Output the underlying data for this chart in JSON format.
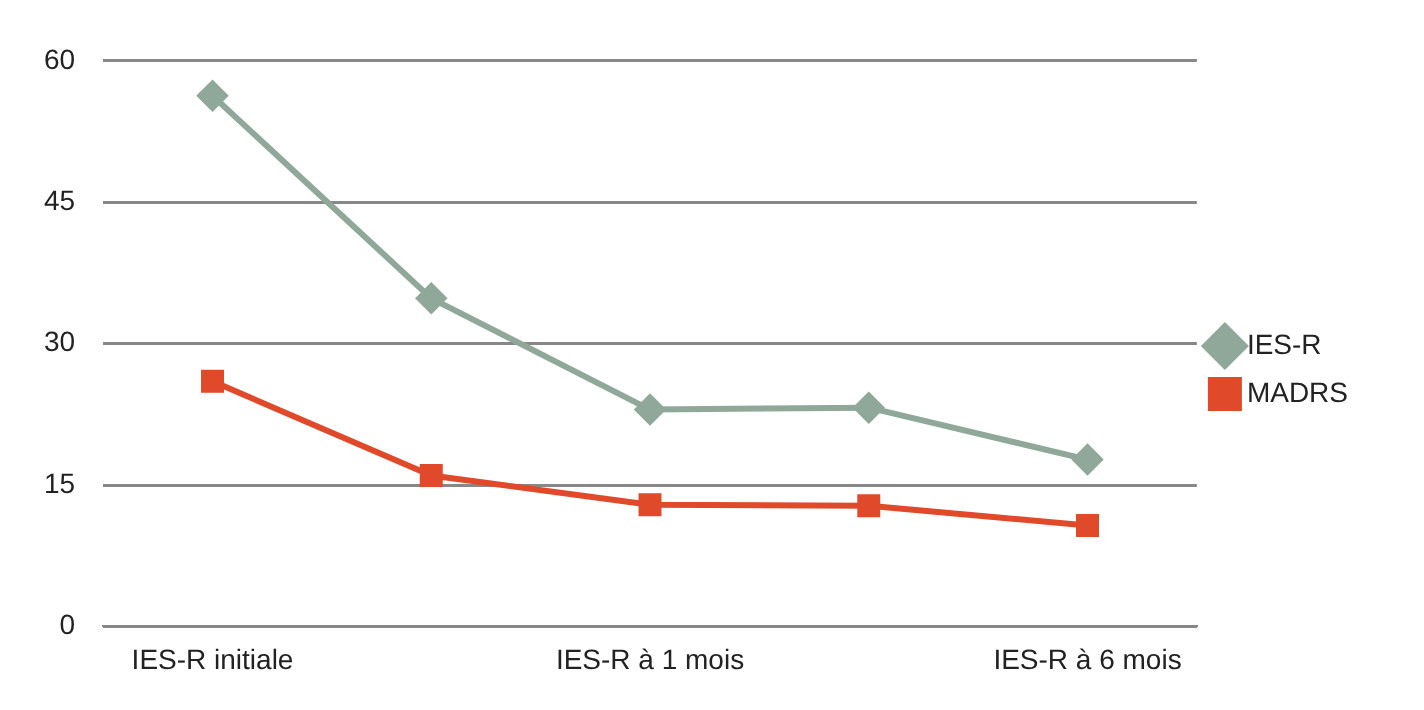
{
  "chart_data": {
    "type": "line",
    "categories": [
      "IES-R initiale",
      null,
      "IES-R à 1 mois",
      null,
      "IES-R à 6 mois"
    ],
    "series": [
      {
        "name": "IES-R",
        "color": "#8fa89a",
        "marker": "diamond",
        "values": [
          56.3,
          34.8,
          23,
          23.2,
          17.7
        ]
      },
      {
        "name": "MADRS",
        "color": "#e0492a",
        "marker": "square",
        "values": [
          26,
          16,
          12.9,
          12.8,
          10.7
        ]
      }
    ],
    "ylim": [
      0,
      60
    ],
    "yticks": [
      0,
      15,
      30,
      45,
      60
    ],
    "grid": "y",
    "legend": "right"
  }
}
